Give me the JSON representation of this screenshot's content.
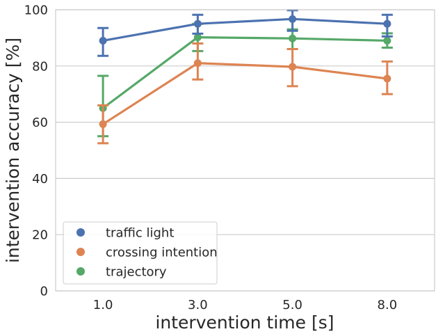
{
  "chart_data": {
    "type": "line",
    "title": "",
    "xlabel": "intervention time [s]",
    "ylabel": "intervention accuracy [%]",
    "categories": [
      "1.0",
      "3.0",
      "5.0",
      "8.0"
    ],
    "ylim": [
      0,
      100
    ],
    "yticks": [
      0,
      20,
      40,
      60,
      80,
      100
    ],
    "grid": "horizontal",
    "legend_position": "bottom-left",
    "series": [
      {
        "name": "traffic light",
        "color": "#4c72b0",
        "values": [
          89.0,
          95.0,
          96.7,
          95.0
        ],
        "err_low": [
          83.6,
          91.5,
          92.5,
          90.5
        ],
        "err_high": [
          93.5,
          98.2,
          99.8,
          98.2
        ]
      },
      {
        "name": "crossing intention",
        "color": "#dd8452",
        "values": [
          59.3,
          81.0,
          79.7,
          75.5
        ],
        "err_low": [
          52.5,
          75.2,
          72.8,
          70.0
        ],
        "err_high": [
          66.0,
          88.0,
          86.0,
          81.6
        ]
      },
      {
        "name": "trajectory",
        "color": "#55a868",
        "values": [
          65.0,
          90.2,
          89.8,
          89.0
        ],
        "err_low": [
          55.0,
          85.3,
          86.0,
          86.5
        ],
        "err_high": [
          76.5,
          95.0,
          93.0,
          91.6
        ]
      }
    ]
  }
}
